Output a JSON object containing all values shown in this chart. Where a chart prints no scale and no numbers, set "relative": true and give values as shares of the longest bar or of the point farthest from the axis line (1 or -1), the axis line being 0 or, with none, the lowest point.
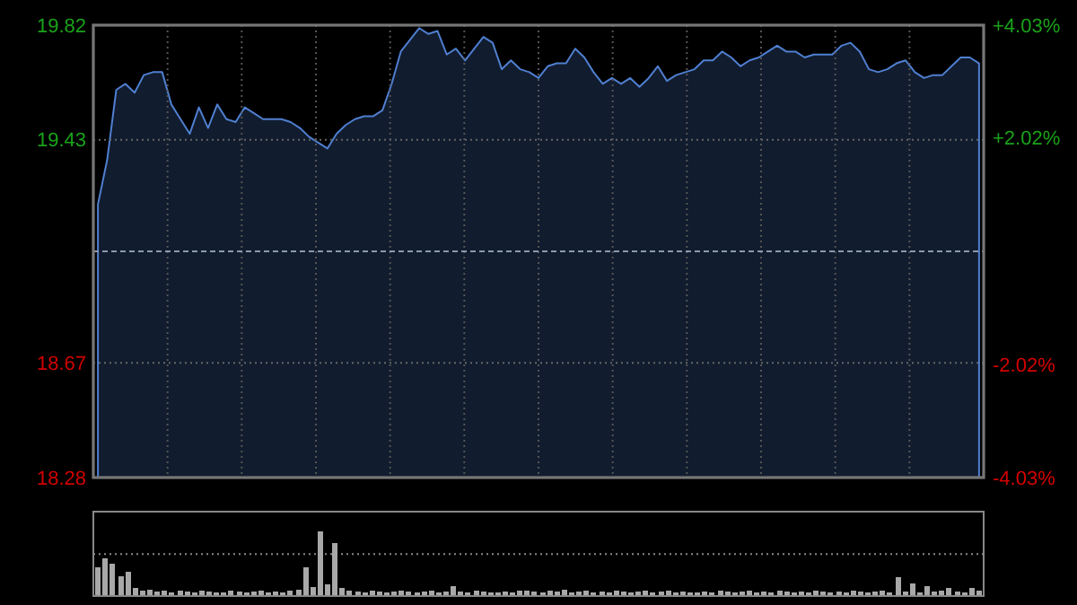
{
  "chart_data": [
    {
      "type": "area",
      "categories": [
        null,
        null,
        null,
        null,
        null,
        null,
        null,
        null,
        null,
        null,
        null,
        null,
        null,
        null,
        null,
        null,
        null,
        null,
        null,
        null,
        null,
        null,
        null,
        null,
        null,
        null,
        null,
        null,
        null,
        null,
        null,
        null,
        null,
        null,
        null,
        null,
        null,
        null,
        null,
        null,
        null,
        null,
        null,
        null,
        null,
        null,
        null,
        null,
        null,
        null,
        null,
        null,
        null,
        null,
        null,
        null,
        null,
        null,
        null,
        null,
        null,
        null,
        null,
        null,
        null,
        null,
        null,
        null,
        null,
        null,
        null,
        null,
        null,
        null,
        null,
        null,
        null,
        null,
        null,
        null,
        null,
        null,
        null,
        null,
        null,
        null,
        null,
        null,
        null,
        null,
        null,
        null,
        null,
        null,
        null,
        null,
        null
      ],
      "series": [
        {
          "color": "#4f7fd0",
          "values": [
            19.21,
            19.36,
            19.6,
            19.62,
            19.59,
            19.65,
            19.66,
            19.66,
            19.55,
            19.5,
            19.45,
            19.54,
            19.47,
            19.55,
            19.5,
            19.49,
            19.54,
            19.52,
            19.5,
            19.5,
            19.5,
            19.49,
            19.47,
            19.44,
            19.42,
            19.4,
            19.45,
            19.48,
            19.5,
            19.51,
            19.51,
            19.53,
            19.62,
            19.73,
            19.77,
            19.81,
            19.79,
            19.8,
            19.72,
            19.74,
            19.7,
            19.74,
            19.78,
            19.76,
            19.67,
            19.7,
            19.67,
            19.66,
            19.64,
            19.68,
            19.69,
            19.69,
            19.74,
            19.71,
            19.66,
            19.62,
            19.64,
            19.62,
            19.64,
            19.61,
            19.64,
            19.68,
            19.63,
            19.65,
            19.66,
            19.67,
            19.7,
            19.7,
            19.73,
            19.71,
            19.68,
            19.7,
            19.71,
            19.73,
            19.75,
            19.73,
            19.73,
            19.71,
            19.72,
            19.72,
            19.72,
            19.75,
            19.76,
            19.73,
            19.67,
            19.66,
            19.67,
            19.69,
            19.7,
            19.66,
            19.64,
            19.65,
            19.65,
            19.68,
            19.71,
            19.71,
            19.69
          ]
        }
      ],
      "ylim": [
        18.28,
        19.82
      ],
      "yticks": [
        18.28,
        18.67,
        19.43,
        19.82
      ],
      "y2lim": [
        -4.03,
        4.03
      ],
      "y2ticks": [
        {
          "value": 4.03,
          "label": "+4.03%"
        },
        {
          "value": 2.02,
          "label": "+2.02%"
        },
        {
          "value": -2.02,
          "label": "-2.02%"
        },
        {
          "value": -4.03,
          "label": "-4.03%"
        }
      ],
      "ref_lines": [
        {
          "axis": "y",
          "value": 19.05,
          "color": "#8a9ab0",
          "line_style": "dashed"
        }
      ],
      "grid": true
    },
    {
      "type": "bar",
      "relative": true,
      "ref_lines": [
        {
          "axis": "y",
          "value": 0.65,
          "color": "#888888",
          "line_style": "dotted"
        }
      ],
      "color": "#a8a8a8",
      "categories": [
        null,
        null,
        null,
        null,
        null,
        null,
        null,
        null,
        null,
        null,
        null,
        null,
        null,
        null,
        null,
        null,
        null,
        null,
        null,
        null,
        null,
        null,
        null,
        null,
        null,
        null,
        null,
        null,
        null,
        null,
        null,
        null,
        null,
        null,
        null,
        null,
        null,
        null,
        null,
        null,
        null,
        null,
        null,
        null,
        null,
        null,
        null,
        null,
        null,
        null,
        null,
        null,
        null,
        null,
        null,
        null,
        null,
        null,
        null,
        null,
        null,
        null,
        null,
        null,
        null,
        null,
        null,
        null,
        null,
        null,
        null,
        null,
        null,
        null,
        null,
        null,
        null,
        null,
        null,
        null,
        null,
        null,
        null,
        null,
        null,
        null,
        null,
        null,
        null,
        null,
        null,
        null,
        null,
        null,
        null,
        null,
        null,
        null,
        null,
        null,
        null,
        null,
        null,
        null,
        null,
        null,
        null,
        null,
        null,
        null,
        null,
        null,
        null,
        null,
        null,
        null,
        null,
        null,
        null,
        null
      ],
      "values": [
        0.44,
        0.58,
        0.5,
        0.3,
        0.38,
        0.12,
        0.08,
        0.1,
        0.07,
        0.09,
        0.06,
        0.08,
        0.07,
        0.06,
        0.09,
        0.07,
        0.06,
        0.06,
        0.08,
        0.07,
        0.06,
        0.07,
        0.08,
        0.06,
        0.07,
        0.06,
        0.08,
        0.1,
        0.44,
        0.14,
        1,
        0.18,
        0.82,
        0.12,
        0.08,
        0.07,
        0.06,
        0.08,
        0.07,
        0.06,
        0.07,
        0.08,
        0.07,
        0.06,
        0.07,
        0.08,
        0.06,
        0.07,
        0.15,
        0.07,
        0.06,
        0.08,
        0.07,
        0.06,
        0.06,
        0.07,
        0.06,
        0.08,
        0.09,
        0.07,
        0.06,
        0.08,
        0.07,
        0.1,
        0.06,
        0.07,
        0.08,
        0.06,
        0.07,
        0.06,
        0.08,
        0.07,
        0.06,
        0.07,
        0.09,
        0.06,
        0.07,
        0.08,
        0.06,
        0.07,
        0.06,
        0.06,
        0.07,
        0.06,
        0.08,
        0.07,
        0.06,
        0.07,
        0.08,
        0.06,
        0.07,
        0.06,
        0.08,
        0.07,
        0.06,
        0.07,
        0.06,
        0.08,
        0.07,
        0.06,
        0.07,
        0.06,
        0.08,
        0.07,
        0.06,
        0.07,
        0.09,
        0.06,
        0.29,
        0.07,
        0.19,
        0.06,
        0.15,
        0.07,
        0.08,
        0.13,
        0.07,
        0.06,
        0.13,
        0.08
      ]
    }
  ]
}
